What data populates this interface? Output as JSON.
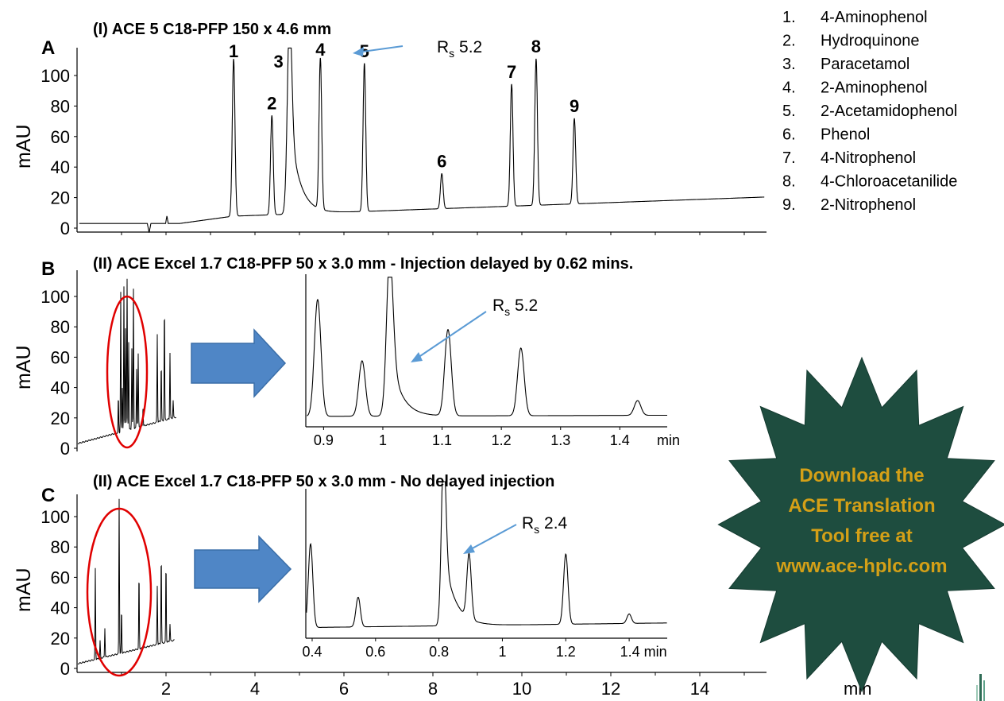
{
  "colors": {
    "trace": "#000000",
    "arrow_fill": "#4F86C6",
    "arrow_stroke": "#3A6EA8",
    "callout": "#5B9BD5",
    "ellipse": "#E00000",
    "starburst": "#1E4D3F",
    "starburst_text": "#D4A017"
  },
  "panels": {
    "A": {
      "letter": "A",
      "title": "(I) ACE 5 C18-PFP 150 x 4.6 mm",
      "ylabel": "mAU",
      "rs_prefix": "R",
      "rs_sub": "s",
      "rs_value": "5.2"
    },
    "B": {
      "letter": "B",
      "title": "(II) ACE Excel 1.7 C18-PFP 50 x 3.0 mm -  Injection delayed by 0.62 mins.",
      "ylabel": "mAU",
      "rs_prefix": "R",
      "rs_sub": "s",
      "rs_value": "5.2"
    },
    "C": {
      "letter": "C",
      "title": "(II) ACE Excel 1.7 C18-PFP 50 x 3.0 mm -  No delayed injection",
      "ylabel": "mAU",
      "rs_prefix": "R",
      "rs_sub": "s",
      "rs_value": "2.4"
    }
  },
  "legend": [
    {
      "num": "1.",
      "name": "4-Aminophenol"
    },
    {
      "num": "2.",
      "name": "Hydroquinone"
    },
    {
      "num": "3.",
      "name": "Paracetamol"
    },
    {
      "num": "4.",
      "name": "2-Aminophenol"
    },
    {
      "num": "5.",
      "name": "2-Acetamidophenol"
    },
    {
      "num": "6.",
      "name": "Phenol"
    },
    {
      "num": "7.",
      "name": "4-Nitrophenol"
    },
    {
      "num": "8.",
      "name": "4-Chloroacetanilide"
    },
    {
      "num": "9.",
      "name": "2-Nitrophenol"
    }
  ],
  "starburst": {
    "line1": "Download the",
    "line2": "ACE Translation",
    "line3": "Tool free at",
    "line4": "www.ace-hplc.com"
  },
  "chart_data": [
    {
      "type": "line",
      "panel": "A",
      "title": "(I) ACE 5 C18-PFP 150 x 4.6 mm",
      "ylabel": "mAU",
      "xlabel": "min",
      "xlim": [
        0,
        15.5
      ],
      "ylim": [
        0,
        110
      ],
      "xticks": [
        "2",
        "4",
        "6",
        "8",
        "10",
        "12",
        "14"
      ],
      "yticks": [
        "0",
        "20",
        "40",
        "60",
        "80",
        "100"
      ],
      "baseline": {
        "start": 3,
        "end": 15
      },
      "peaks": [
        {
          "label": "1",
          "rt": 3.52,
          "height": 103,
          "width": 0.03
        },
        {
          "label": "2",
          "rt": 4.38,
          "height": 65,
          "width": 0.03
        },
        {
          "label": "3",
          "rt": 4.78,
          "height": 135,
          "width": 0.05,
          "tailing": true
        },
        {
          "label": "4",
          "rt": 5.47,
          "height": 99,
          "width": 0.03
        },
        {
          "label": "5",
          "rt": 6.46,
          "height": 97,
          "width": 0.03
        },
        {
          "label": "6",
          "rt": 8.2,
          "height": 23,
          "width": 0.03
        },
        {
          "label": "7",
          "rt": 9.77,
          "height": 80,
          "width": 0.03
        },
        {
          "label": "8",
          "rt": 10.32,
          "height": 96,
          "width": 0.03
        },
        {
          "label": "9",
          "rt": 11.18,
          "height": 56,
          "width": 0.03
        }
      ]
    },
    {
      "type": "line",
      "panel": "B-overview",
      "ylabel": "mAU",
      "ylim": [
        0,
        110
      ],
      "yticks": [
        "0",
        "20",
        "40",
        "60",
        "80",
        "100"
      ],
      "note": "compressed full chromatogram with red ellipse highlighting early region"
    },
    {
      "type": "line",
      "panel": "B-zoom",
      "xlabel": "min",
      "xlim": [
        0.87,
        1.48
      ],
      "xticks": [
        "0.9",
        "1",
        "1.1",
        "1.2",
        "1.3",
        "1.4"
      ],
      "peaks": [
        {
          "rt": 0.89,
          "height": 95
        },
        {
          "rt": 0.965,
          "height": 45
        },
        {
          "rt": 1.012,
          "height": 135,
          "tailing": true
        },
        {
          "rt": 1.11,
          "height": 70
        },
        {
          "rt": 1.233,
          "height": 55
        },
        {
          "rt": 1.43,
          "height": 12
        }
      ]
    },
    {
      "type": "line",
      "panel": "C-overview",
      "ylabel": "mAU",
      "ylim": [
        0,
        110
      ],
      "yticks": [
        "0",
        "20",
        "40",
        "60",
        "80",
        "100"
      ],
      "note": "compressed full chromatogram with red ellipse highlighting early region"
    },
    {
      "type": "line",
      "panel": "C-zoom",
      "xlabel": "min",
      "xlim": [
        0.38,
        1.52
      ],
      "xticks": [
        "0.4",
        "0.6",
        "0.8",
        "1",
        "1.2",
        "1.4 min"
      ],
      "peaks": [
        {
          "rt": 0.395,
          "height": 62
        },
        {
          "rt": 0.545,
          "height": 22
        },
        {
          "rt": 0.815,
          "height": 135,
          "tailing": true
        },
        {
          "rt": 0.895,
          "height": 48
        },
        {
          "rt": 1.2,
          "height": 52
        },
        {
          "rt": 1.4,
          "height": 7
        }
      ]
    }
  ]
}
